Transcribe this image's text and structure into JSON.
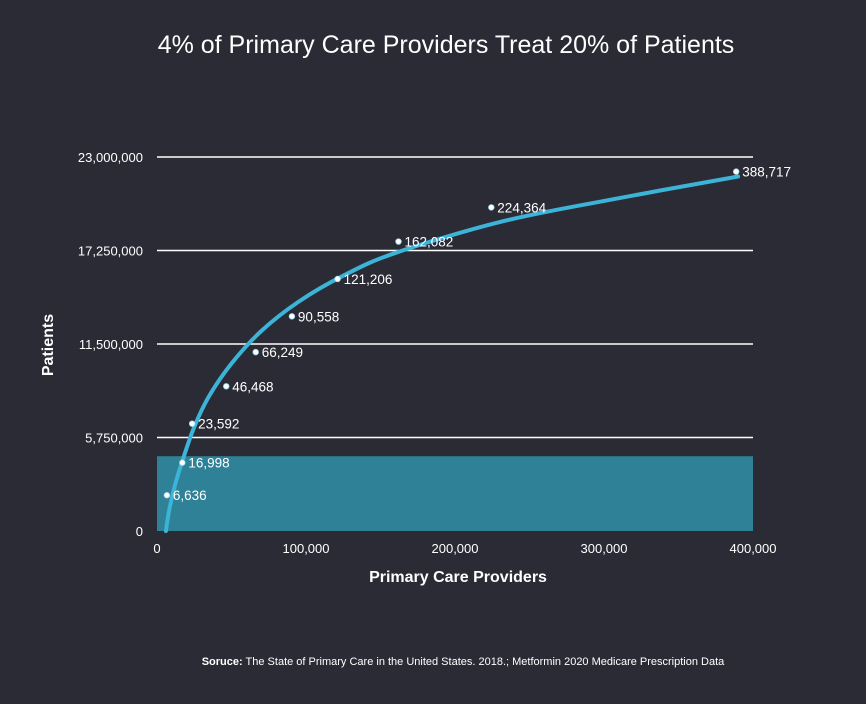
{
  "chart_data": {
    "type": "scatter",
    "title": "4% of Primary Care Providers Treat 20% of Patients",
    "xlabel": "Primary Care Providers",
    "ylabel": "Patients",
    "xlim": [
      0,
      400000
    ],
    "ylim": [
      0,
      23000000
    ],
    "x_ticks": [
      0,
      100000,
      200000,
      300000,
      400000
    ],
    "x_tick_labels": [
      "0",
      "100,000",
      "200,000",
      "300,000",
      "400,000"
    ],
    "y_ticks": [
      0,
      5750000,
      11500000,
      17250000,
      23000000
    ],
    "y_tick_labels": [
      "0",
      "5,750,000",
      "11,500,000",
      "17,250,000",
      "23,000,000"
    ],
    "grid": "horizontal",
    "highlight_band": {
      "x": [
        0,
        400000
      ],
      "y": [
        0,
        4600000
      ],
      "color": "#2e8196"
    },
    "points": [
      {
        "x": 6636,
        "y": 2200000,
        "label": "6,636"
      },
      {
        "x": 16998,
        "y": 4200000,
        "label": "16,998"
      },
      {
        "x": 23592,
        "y": 6600000,
        "label": "23,592"
      },
      {
        "x": 46468,
        "y": 8900000,
        "label": "46,468"
      },
      {
        "x": 66249,
        "y": 11000000,
        "label": "66,249"
      },
      {
        "x": 90558,
        "y": 13200000,
        "label": "90,558"
      },
      {
        "x": 121206,
        "y": 15500000,
        "label": "121,206"
      },
      {
        "x": 162082,
        "y": 17800000,
        "label": "162,082"
      },
      {
        "x": 224364,
        "y": 19900000,
        "label": "224,364"
      },
      {
        "x": 388717,
        "y": 22100000,
        "label": "388,717"
      }
    ],
    "trendline": {
      "color": "#3bb4d8",
      "points": [
        [
          6000,
          0
        ],
        [
          8000,
          1200000
        ],
        [
          12000,
          2800000
        ],
        [
          17000,
          4300000
        ],
        [
          25000,
          6400000
        ],
        [
          35000,
          8300000
        ],
        [
          50000,
          10300000
        ],
        [
          70000,
          12300000
        ],
        [
          95000,
          14100000
        ],
        [
          125000,
          15700000
        ],
        [
          160000,
          17100000
        ],
        [
          230000,
          19000000
        ],
        [
          300000,
          20300000
        ],
        [
          390000,
          21800000
        ]
      ]
    },
    "colors": {
      "background": "#2b2b36",
      "grid": "#ffffff",
      "point": "#ffffff"
    }
  },
  "source": {
    "key": "Soruce:",
    "text": " The State of Primary Care in the United States. 2018.; Metformin 2020 Medicare Prescription Data"
  }
}
